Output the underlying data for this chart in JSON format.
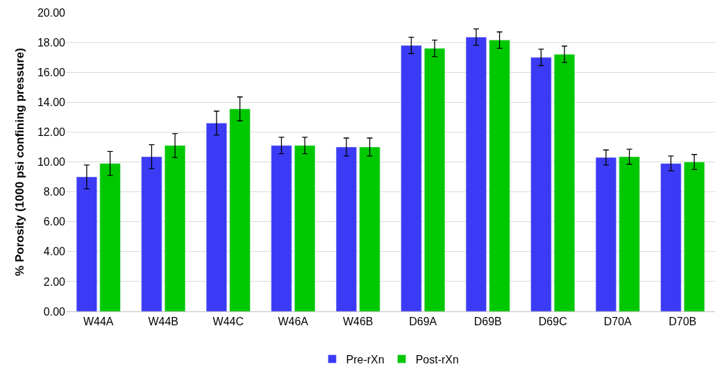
{
  "chart_data": {
    "type": "bar",
    "ylabel": "% Porosity (1000 psi confining pressure)",
    "categories": [
      "W44A",
      "W44B",
      "W44C",
      "W46A",
      "W46B",
      "D69A",
      "D69B",
      "D69C",
      "D70A",
      "D70B"
    ],
    "series": [
      {
        "name": "Pre-rXn",
        "color": "#3b3bf5",
        "values": [
          9.0,
          10.35,
          12.6,
          11.1,
          11.0,
          17.8,
          18.35,
          17.0,
          10.3,
          9.9
        ],
        "errors": [
          0.8,
          0.8,
          0.8,
          0.55,
          0.6,
          0.55,
          0.55,
          0.55,
          0.5,
          0.5
        ]
      },
      {
        "name": "Post-rXn",
        "color": "#00c800",
        "values": [
          9.9,
          11.1,
          13.55,
          11.1,
          11.0,
          17.6,
          18.15,
          17.2,
          10.35,
          10.0
        ],
        "errors": [
          0.8,
          0.8,
          0.8,
          0.55,
          0.6,
          0.55,
          0.55,
          0.55,
          0.5,
          0.5
        ]
      }
    ],
    "ylim": [
      0,
      20
    ],
    "yticks": [
      {
        "value": 0,
        "label": "0.00"
      },
      {
        "value": 2,
        "label": "2.00"
      },
      {
        "value": 4,
        "label": "4.00"
      },
      {
        "value": 6,
        "label": "6.00"
      },
      {
        "value": 8,
        "label": "8.00"
      },
      {
        "value": 10,
        "label": "10.00"
      },
      {
        "value": 12,
        "label": "12.00"
      },
      {
        "value": 14,
        "label": "14.00"
      },
      {
        "value": 16,
        "label": "16.00"
      },
      {
        "value": 18,
        "label": "18.00"
      },
      {
        "value": 20,
        "label": "20.00"
      }
    ],
    "grid": "y",
    "legend": "bottom"
  }
}
